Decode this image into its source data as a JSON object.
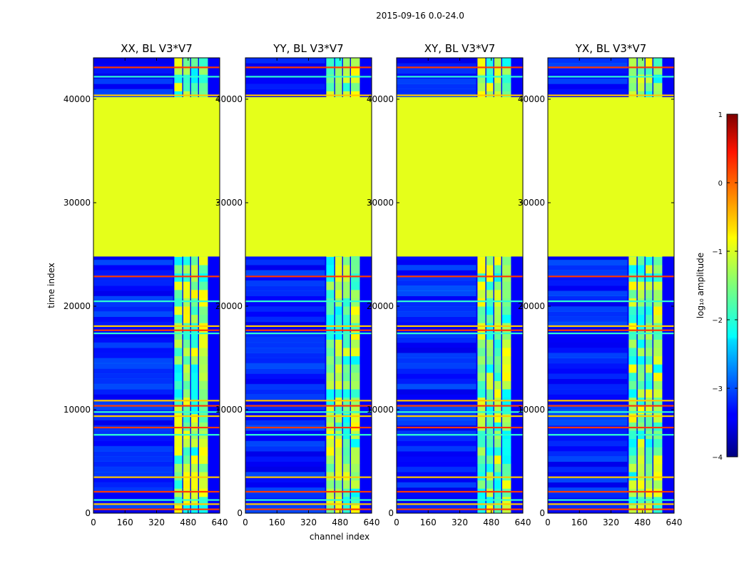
{
  "figure_title": "2015-09-16 0.0-24.0",
  "chart_data": {
    "type": "heatmap",
    "suptitle": "2015-09-16 0.0-24.0",
    "xlabel": "channel index",
    "ylabel": "time index",
    "xlim": [
      0,
      640
    ],
    "ylim": [
      0,
      44000
    ],
    "x_ticks": [
      0,
      160,
      320,
      480,
      640
    ],
    "x_tick_labels": [
      "0",
      "160",
      "320",
      "480",
      "640"
    ],
    "y_ticks": [
      0,
      10000,
      20000,
      30000,
      40000
    ],
    "y_tick_labels": [
      "0",
      "10000",
      "20000",
      "30000",
      "40000"
    ],
    "colorbar": {
      "label": "log₁₀ amplitude",
      "range": [
        -4,
        1
      ],
      "colormap": "jet",
      "ticks": [
        -4,
        -3,
        -2,
        -1,
        0,
        1
      ],
      "tick_labels": [
        "−4",
        "−3",
        "−2",
        "−1",
        "0",
        "1"
      ]
    },
    "shared_features": {
      "flat_time_range": [
        24800,
        40200
      ],
      "flat_value": -1.0,
      "rfi_channel_columns": [
        [
          410,
          450
        ],
        [
          455,
          490
        ],
        [
          495,
          530
        ],
        [
          535,
          580
        ]
      ],
      "flagged_time_rows": [
        300,
        800,
        1200,
        2000,
        3400,
        7500,
        8200,
        9300,
        9700,
        10300,
        10800,
        17300,
        17600,
        18000,
        20400,
        22800,
        40300,
        42100,
        43000
      ]
    },
    "panels": [
      {
        "title": "XX, BL V3*V7",
        "polarization": "XX",
        "rfi_channels": [
          410,
          580
        ]
      },
      {
        "title": "YY, BL V3*V7",
        "polarization": "YY",
        "rfi_channels": [
          410,
          600
        ]
      },
      {
        "title": "XY, BL V3*V7",
        "polarization": "XY",
        "rfi_channels": [
          410,
          600
        ]
      },
      {
        "title": "YX, BL V3*V7",
        "polarization": "YX",
        "rfi_channels": [
          410,
          600
        ]
      }
    ]
  },
  "colors": {
    "frame": "#000000",
    "background": "#ffffff"
  }
}
